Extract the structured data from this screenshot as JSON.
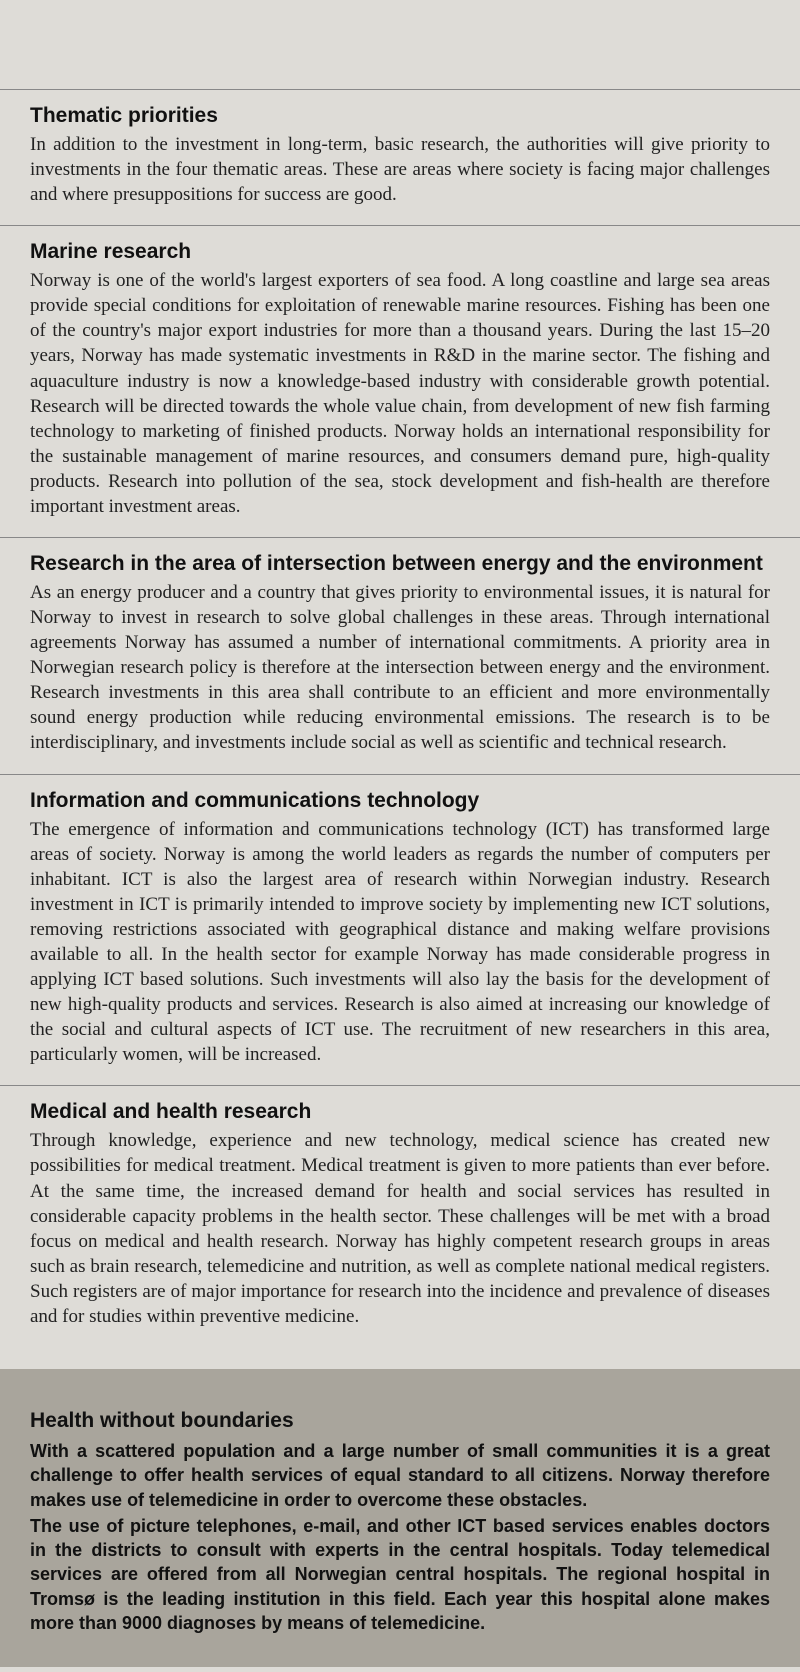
{
  "colors": {
    "page_bg": "#dedcd7",
    "gray_bg": "#a9a59c",
    "rule": "#888888",
    "text": "#1a1a1a"
  },
  "typography": {
    "body_family": "Georgia, Times New Roman, serif",
    "heading_family": "Segoe UI, Helvetica Neue, Arial, sans-serif",
    "heading_size_pt": 16,
    "body_size_pt": 14
  },
  "sections": [
    {
      "heading": "Thematic priorities",
      "body": "In addition to the investment in long-term, basic research, the authorities will give priority to investments in the four thematic areas. These are areas where society is facing major challenges and where presuppositions for success are good."
    },
    {
      "heading": "Marine research",
      "body": "Norway is one of the world's largest exporters of sea food. A long coastline and large sea areas provide special conditions for exploitation of renewable marine resources. Fishing has been one of the country's major export industries for more than a thousand years. During the last 15–20 years, Norway has made systematic investments in R&D in the marine sector. The fishing and aquaculture industry is now a knowledge-based industry with considerable growth potential. Research will be directed towards the whole value chain, from development of new fish farming technology to marketing of finished products. Norway holds an international responsibility for the sustainable management of marine resources, and consumers demand pure, high-quality products. Research into pollution of the sea, stock development and fish-health are therefore important investment areas."
    },
    {
      "heading": "Research in the area of intersection between energy and the environment",
      "body": "As an energy producer and a country that gives priority to environmental issues, it is natural for Norway to invest in research to solve global challenges in these areas. Through international agreements Norway has assumed a number of international commitments. A priority area in Norwegian research policy is therefore at the intersection between energy and the environment. Research investments in this area shall contribute to an efficient and more environmentally sound energy production while reducing environmental emissions. The research is to be interdisciplinary, and investments include social as well as scientific and technical research."
    },
    {
      "heading": "Information and communications technology",
      "body": "The emergence of information and communications technology (ICT) has transformed large areas of society. Norway is among the world leaders as regards the number of computers per inhabitant. ICT is also the largest area of research within Norwegian industry. Research investment in ICT is primarily intended to improve society by implementing new ICT solutions, removing restrictions associated with geographical distance and making welfare provisions available to all. In the health sector for example Norway has made considerable progress in applying ICT based solutions. Such investments will also lay the basis for the development of new high-quality products and services. Research is also aimed at increasing our knowledge of the social and cultural aspects of ICT use. The recruitment of new researchers in this area, particularly women, will be increased."
    },
    {
      "heading": "Medical and health research",
      "body": "Through knowledge, experience and new technology, medical science has created new possibilities for medical treatment. Medical treatment is given to more patients than ever before. At the same time, the increased demand for health and social services has resulted in considerable capacity problems in the health sector. These challenges will be met with a broad focus on medical and health research. Norway has highly competent research groups in areas such as brain research, telemedicine and nutrition, as well as complete national medical registers. Such registers are of major importance for research into the incidence and prevalence of diseases and for studies within preventive medicine."
    }
  ],
  "callout": {
    "heading": "Health without boundaries",
    "p1": "With a scattered population and a large number of small communities it is a great challenge to offer health services of equal standard to all citizens. Norway therefore makes use of telemedicine in order to overcome these obstacles.",
    "p2": "The use of picture telephones, e-mail, and other ICT based services enables doctors in the districts to consult with experts in the central hospitals. Today telemedical services are offered from all Norwegian central hospitals. The regional hospital in Tromsø is the leading institution in this field. Each year this hospital alone makes more than 9000 diagnoses by means of telemedicine."
  }
}
